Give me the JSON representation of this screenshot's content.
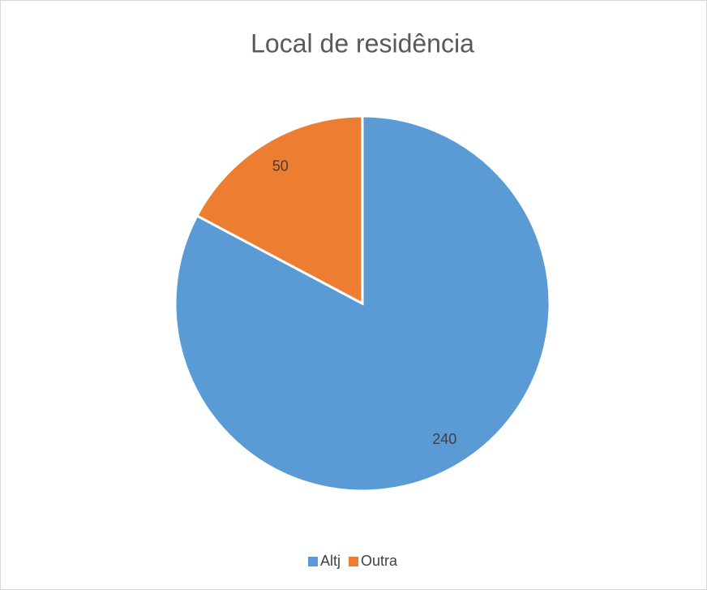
{
  "chart_data": {
    "type": "pie",
    "title": "Local de residência",
    "categories": [
      "Altj",
      "Outra"
    ],
    "series": [
      {
        "name": "Local de residência",
        "colors": [
          "#5b9bd5",
          "#ed7d31"
        ],
        "values": [
          240,
          50
        ]
      }
    ],
    "legend": "bottom"
  }
}
